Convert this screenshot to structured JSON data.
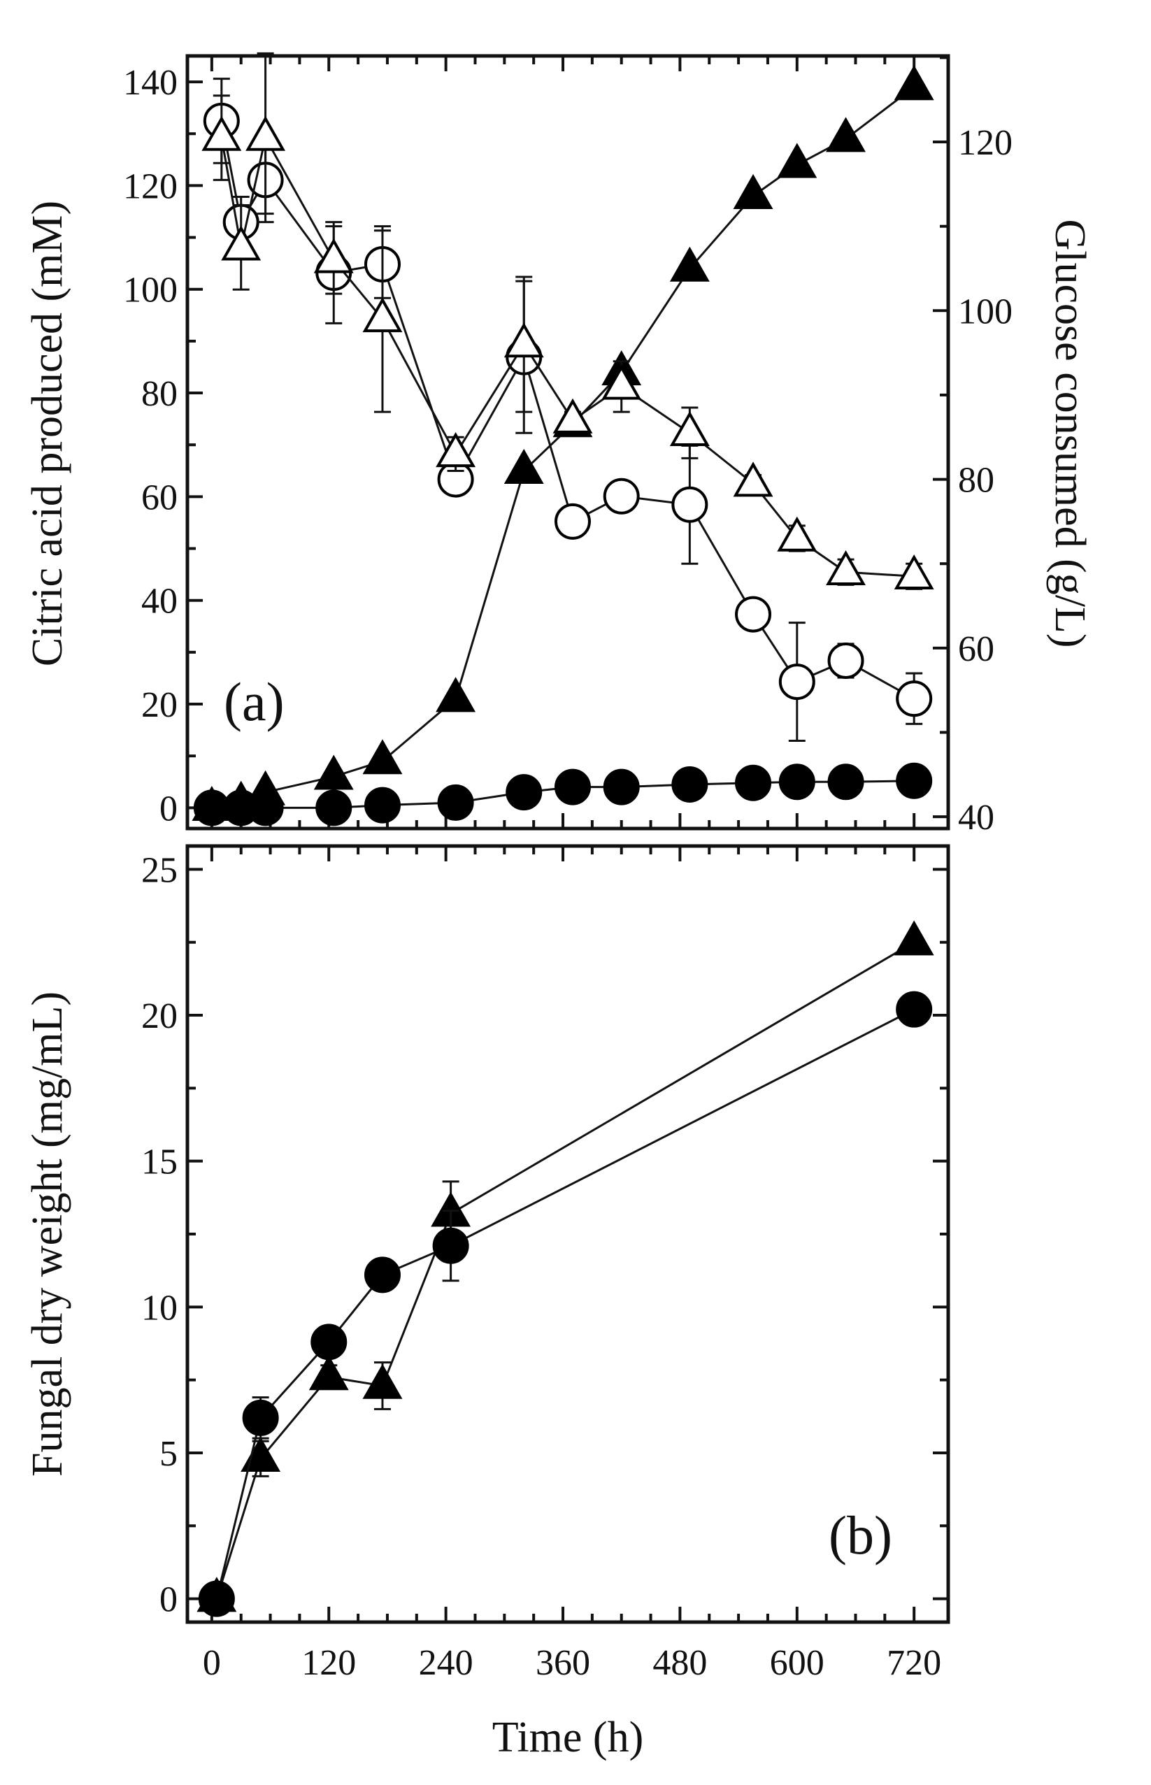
{
  "figure": {
    "xlabel": "Time (h)",
    "x_ticks": [
      "0",
      "120",
      "240",
      "360",
      "480",
      "600",
      "720"
    ]
  },
  "chart_data": [
    {
      "type": "line",
      "panel_label": "(a)",
      "xlabel": "Time (h)",
      "xlim": [
        -25,
        755
      ],
      "x_ticks": [
        0,
        120,
        240,
        360,
        480,
        600,
        720
      ],
      "ylabel": "Citric acid produced (mM)",
      "ylim": [
        -4,
        145
      ],
      "y_ticks": [
        0,
        20,
        40,
        60,
        80,
        100,
        120,
        140
      ],
      "y_tick_labels": [
        "0",
        "20",
        "40",
        "60",
        "80",
        "100",
        "120",
        "140"
      ],
      "y2label": "Glucose consumed (g/L)",
      "y2lim": [
        38.6,
        130.2
      ],
      "y2_ticks": [
        40,
        60,
        80,
        100,
        120
      ],
      "y2_tick_labels": [
        "40",
        "60",
        "80",
        "100",
        "120"
      ],
      "series": [
        {
          "name": "citric-acid-filled-triangle",
          "axis": "left",
          "marker": "triangle",
          "filled": true,
          "x": [
            0,
            30,
            55,
            125,
            175,
            250,
            320,
            370,
            420,
            490,
            555,
            600,
            650,
            720
          ],
          "y": [
            0,
            1,
            3,
            6,
            9,
            21,
            65,
            74,
            84,
            104,
            118,
            124,
            129,
            139
          ],
          "err": [
            0,
            0,
            0,
            0,
            0,
            0,
            0,
            0,
            0,
            0,
            0,
            0,
            0,
            0
          ]
        },
        {
          "name": "citric-acid-filled-circle",
          "axis": "left",
          "marker": "circle",
          "filled": true,
          "x": [
            0,
            30,
            55,
            125,
            175,
            250,
            320,
            370,
            420,
            490,
            555,
            600,
            650,
            720
          ],
          "y": [
            0,
            0,
            0,
            0,
            0.5,
            1,
            3,
            4,
            4,
            4.5,
            4.8,
            5,
            5,
            5.2
          ],
          "err": [
            0,
            0,
            0,
            0,
            0,
            0,
            0,
            0,
            0,
            0,
            0,
            0,
            0,
            0
          ]
        },
        {
          "name": "glucose-open-circle",
          "axis": "right",
          "marker": "circle",
          "filled": false,
          "x": [
            10,
            30,
            55,
            125,
            175,
            250,
            320,
            370,
            420,
            490,
            555,
            600,
            650,
            720
          ],
          "y": [
            122.5,
            110.5,
            115.5,
            104.5,
            105.5,
            80.0,
            94.5,
            75.0,
            78.0,
            77.0,
            64.0,
            56.0,
            58.5,
            54.0
          ],
          "err": [
            5,
            3,
            4,
            6,
            4,
            1.5,
            9,
            0.5,
            1,
            7,
            0.5,
            7,
            2,
            3
          ]
        },
        {
          "name": "glucose-open-triangle",
          "axis": "right",
          "marker": "triangle",
          "filled": false,
          "x": [
            10,
            30,
            55,
            125,
            175,
            250,
            320,
            370,
            420,
            490,
            555,
            600,
            650,
            720
          ],
          "y": [
            120.5,
            107.5,
            120.5,
            106.0,
            99.0,
            83.0,
            96.0,
            87.0,
            91.0,
            85.5,
            79.5,
            73.0,
            69.0,
            68.5
          ],
          "err": [
            5,
            5,
            10,
            4,
            11,
            2,
            8,
            1,
            3,
            3,
            1,
            1.5,
            1.5,
            1.5
          ]
        }
      ]
    },
    {
      "type": "line",
      "panel_label": "(b)",
      "xlabel": "Time (h)",
      "xlim": [
        -25,
        755
      ],
      "x_ticks": [
        0,
        120,
        240,
        360,
        480,
        600,
        720
      ],
      "ylabel": "Fungal dry weight (mg/mL)",
      "ylim": [
        -0.8,
        25.8
      ],
      "y_ticks": [
        0,
        5,
        10,
        15,
        20,
        25
      ],
      "y_tick_labels": [
        "0",
        "5",
        "10",
        "15",
        "20",
        "25"
      ],
      "series": [
        {
          "name": "dry-weight-filled-triangle",
          "marker": "triangle",
          "filled": true,
          "x": [
            5,
            50,
            120,
            175,
            245,
            720
          ],
          "y": [
            0,
            4.8,
            7.6,
            7.3,
            13.2,
            22.5
          ],
          "err": [
            0,
            0.6,
            0.4,
            0.8,
            1.1,
            0
          ]
        },
        {
          "name": "dry-weight-filled-circle",
          "marker": "circle",
          "filled": true,
          "x": [
            5,
            50,
            120,
            175,
            245,
            720
          ],
          "y": [
            0,
            6.2,
            8.8,
            11.1,
            12.1,
            20.2
          ],
          "err": [
            0,
            0.7,
            0.3,
            0.4,
            1.2,
            0
          ]
        }
      ]
    }
  ]
}
